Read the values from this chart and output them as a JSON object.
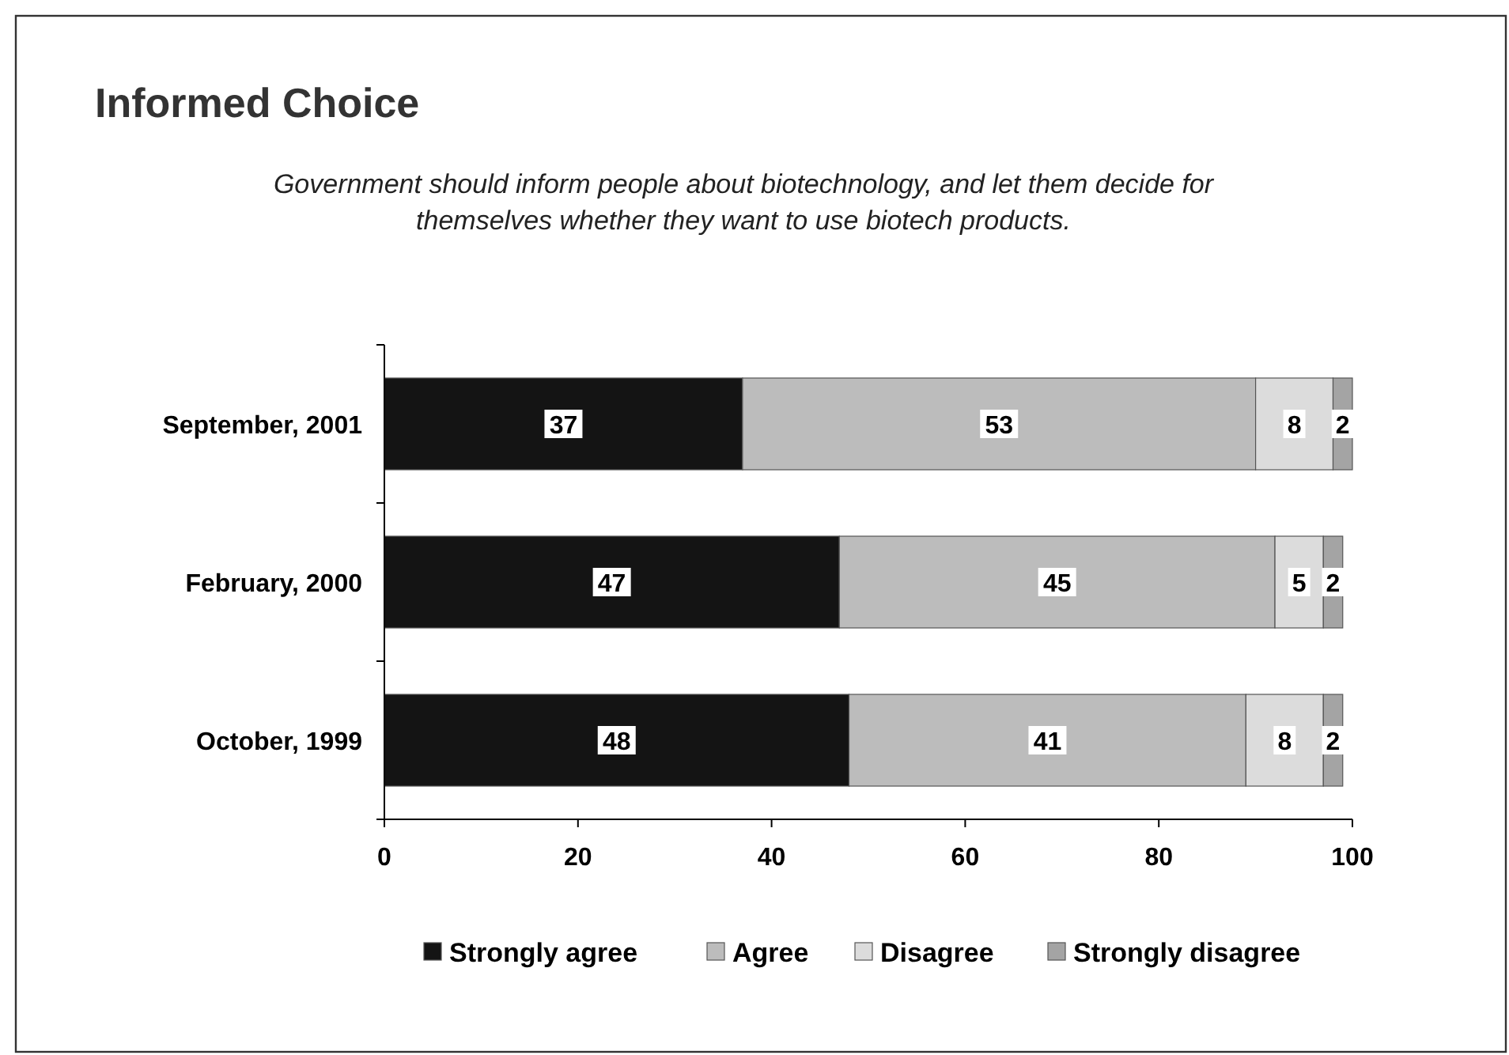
{
  "chart_data": {
    "type": "bar",
    "orientation": "horizontal",
    "stacked": true,
    "title": "Informed Choice",
    "subtitle": "Government should inform people about biotechnology, and let them decide for themselves whether they want to use biotech products.",
    "categories": [
      "September, 2001",
      "February, 2000",
      "October, 1999"
    ],
    "series": [
      {
        "name": "Strongly agree",
        "color": "#141414",
        "values": [
          37,
          47,
          48
        ]
      },
      {
        "name": "Agree",
        "color": "#bcbcbc",
        "values": [
          53,
          45,
          41
        ]
      },
      {
        "name": "Disagree",
        "color": "#dcdcdc",
        "values": [
          8,
          5,
          8
        ]
      },
      {
        "name": "Strongly disagree",
        "color": "#a4a4a4",
        "values": [
          2,
          2,
          2
        ]
      }
    ],
    "xlim": [
      0,
      100
    ],
    "xticks": [
      0,
      20,
      40,
      60,
      80,
      100
    ],
    "data_labels": true,
    "legend": "bottom"
  }
}
